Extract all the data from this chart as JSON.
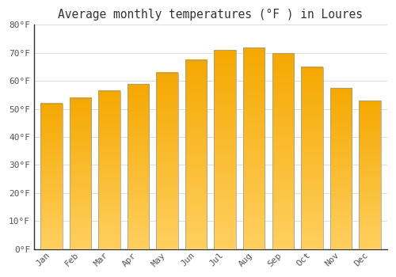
{
  "title": "Average monthly temperatures (°F ) in Loures",
  "months": [
    "Jan",
    "Feb",
    "Mar",
    "Apr",
    "May",
    "Jun",
    "Jul",
    "Aug",
    "Sep",
    "Oct",
    "Nov",
    "Dec"
  ],
  "values": [
    52,
    54,
    56.5,
    59,
    63,
    67.5,
    71,
    72,
    70,
    65,
    57.5,
    53
  ],
  "bar_color_top": "#F5A800",
  "bar_color_bottom": "#FFD060",
  "bar_edge_color": "#999999",
  "ylim": [
    0,
    80
  ],
  "yticks": [
    0,
    10,
    20,
    30,
    40,
    50,
    60,
    70,
    80
  ],
  "ytick_labels": [
    "0°F",
    "10°F",
    "20°F",
    "30°F",
    "40°F",
    "50°F",
    "60°F",
    "70°F",
    "80°F"
  ],
  "background_color": "#ffffff",
  "grid_color": "#dddddd",
  "title_fontsize": 10.5,
  "tick_fontsize": 8,
  "bar_width": 0.75
}
